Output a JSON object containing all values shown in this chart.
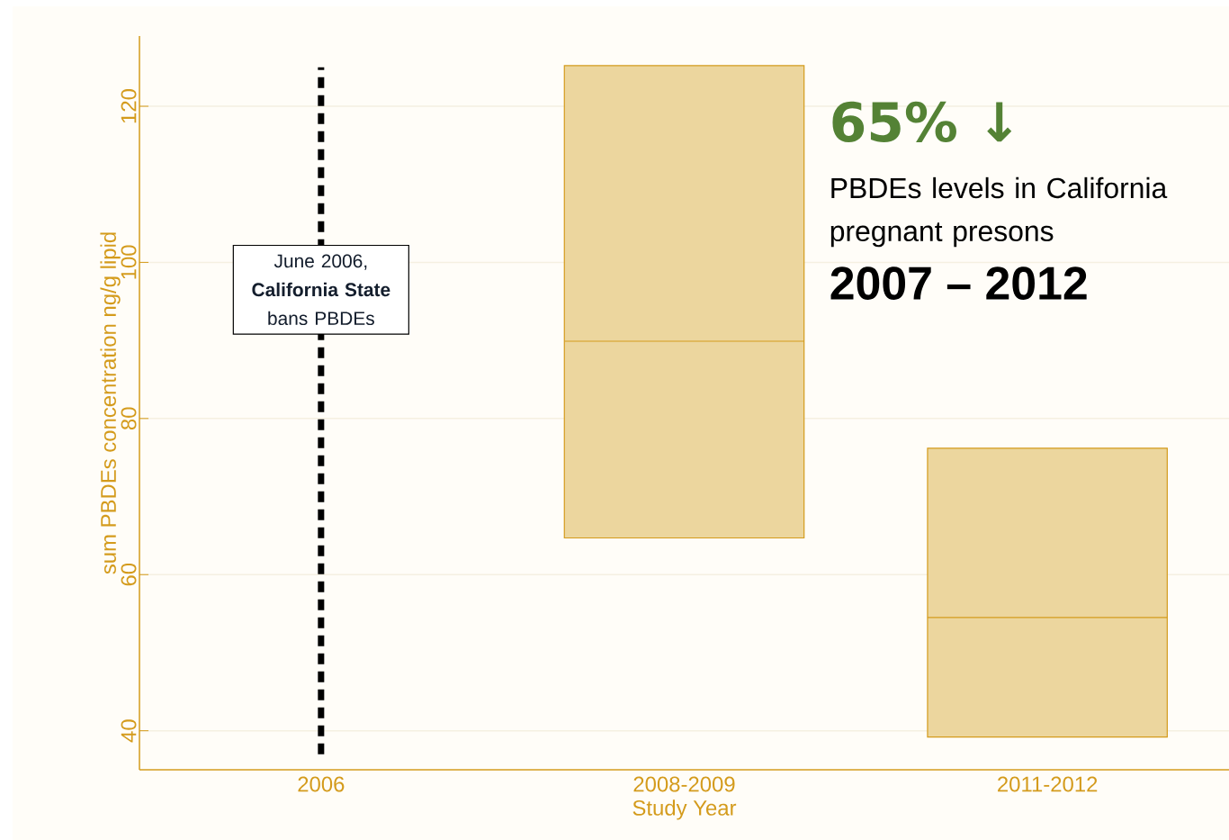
{
  "chart_data": {
    "type": "box",
    "xlabel": "Study Year",
    "ylabel": "sum PBDEs concentration ng/g lipid",
    "categories": [
      "2006",
      "2008-2009",
      "2011-2012"
    ],
    "boxes": [
      null,
      {
        "low": 64.7,
        "q1": 64.7,
        "median": 89.9,
        "q3": 125.2,
        "high": 125.2
      },
      {
        "low": 39.2,
        "q1": 39.2,
        "median": 54.5,
        "q3": 76.2,
        "high": 76.2
      }
    ],
    "color": "#ecd69e",
    "ylim": [
      35,
      129
    ],
    "yticks": [
      40,
      60,
      80,
      100,
      120
    ],
    "grid": "y",
    "ref_lines": [
      {
        "axis": "x",
        "value": "2006",
        "label": "June 2006, **California State** bans PBDEs",
        "color": "#000000",
        "line_style": "dashed"
      }
    ],
    "annotations": [
      "65% ↓",
      "PBDEs levels in California pregnant presons",
      "2007 – 2012"
    ]
  }
}
